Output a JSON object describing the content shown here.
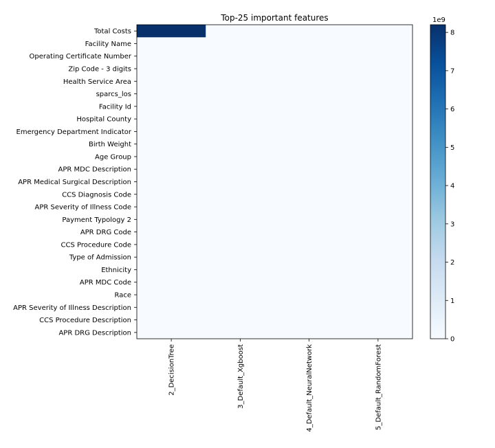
{
  "chart_data": {
    "type": "heatmap",
    "title": "Top-25 important features",
    "rows": [
      "Total Costs",
      "Facility Name",
      "Operating Certificate Number",
      "Zip Code - 3 digits",
      "Health Service Area",
      "sparcs_los",
      "Facility Id",
      "Hospital County",
      "Emergency Department Indicator",
      "Birth Weight",
      "Age Group",
      "APR MDC Description",
      "APR Medical Surgical Description",
      "CCS Diagnosis Code",
      "APR Severity of Illness Code",
      "Payment Typology 2",
      "APR DRG Code",
      "CCS Procedure Code",
      "Type of Admission",
      "Ethnicity",
      "APR MDC Code",
      "Race",
      "APR Severity of Illness Description",
      "CCS Procedure Description",
      "APR DRG Description"
    ],
    "columns": [
      "2_DecisionTree",
      "3_Default_Xgboost",
      "4_Default_NeuralNetwork",
      "5_Default_RandomForest"
    ],
    "nonzero_cells": [
      {
        "row": "Total Costs",
        "column": "2_DecisionTree",
        "value": 8200000000
      }
    ],
    "colorbar": {
      "min": 0,
      "max": 8200000000,
      "ticks": [
        0,
        1,
        2,
        3,
        4,
        5,
        6,
        7,
        8
      ],
      "multiplier_label": "1e9",
      "colormap": "Blues",
      "low_color": "#f7fbff",
      "high_color": "#08306b"
    }
  }
}
